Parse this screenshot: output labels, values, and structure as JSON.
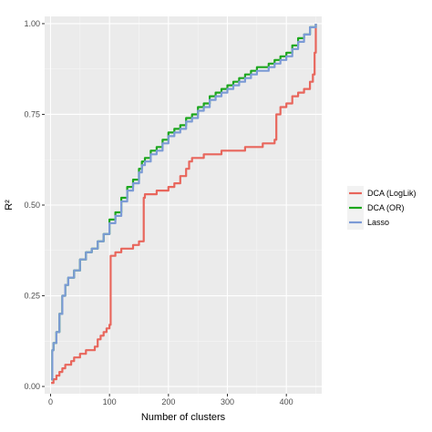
{
  "chart_data": {
    "type": "line",
    "title": "",
    "xlabel": "Number of clusters",
    "ylabel": "R²",
    "xlim": [
      -10,
      460
    ],
    "ylim": [
      -0.02,
      1.02
    ],
    "xticks": [
      0,
      100,
      200,
      300,
      400
    ],
    "yticks": [
      0.0,
      0.25,
      0.5,
      0.75,
      1.0
    ],
    "xtick_labels": [
      "0",
      "100",
      "200",
      "300",
      "400"
    ],
    "ytick_labels": [
      "0.00",
      "0.25",
      "0.50",
      "0.75",
      "1.00"
    ],
    "grid": true,
    "legend_position": "right",
    "series": [
      {
        "name": "DCA (LogLik)",
        "color": "#e8665c",
        "x": [
          1,
          5,
          10,
          15,
          20,
          25,
          30,
          35,
          40,
          45,
          50,
          55,
          60,
          65,
          70,
          75,
          80,
          85,
          90,
          95,
          100,
          102,
          104,
          110,
          120,
          130,
          140,
          150,
          155,
          158,
          160,
          170,
          180,
          190,
          200,
          210,
          220,
          230,
          235,
          240,
          250,
          260,
          270,
          280,
          290,
          300,
          310,
          320,
          330,
          340,
          350,
          360,
          370,
          375,
          380,
          383,
          385,
          390,
          400,
          410,
          420,
          430,
          440,
          445,
          448,
          450
        ],
        "y": [
          0.01,
          0.02,
          0.03,
          0.04,
          0.05,
          0.06,
          0.06,
          0.07,
          0.08,
          0.08,
          0.09,
          0.09,
          0.1,
          0.1,
          0.1,
          0.11,
          0.13,
          0.14,
          0.15,
          0.16,
          0.17,
          0.36,
          0.36,
          0.37,
          0.38,
          0.38,
          0.39,
          0.4,
          0.4,
          0.52,
          0.53,
          0.53,
          0.54,
          0.54,
          0.55,
          0.56,
          0.58,
          0.6,
          0.62,
          0.63,
          0.63,
          0.64,
          0.64,
          0.64,
          0.65,
          0.65,
          0.65,
          0.65,
          0.66,
          0.66,
          0.66,
          0.67,
          0.67,
          0.67,
          0.68,
          0.75,
          0.75,
          0.77,
          0.78,
          0.8,
          0.81,
          0.82,
          0.84,
          0.86,
          0.92,
          1.0
        ]
      },
      {
        "name": "DCA (OR)",
        "color": "#1ca71c",
        "x": [
          1,
          3,
          5,
          10,
          15,
          20,
          25,
          30,
          40,
          50,
          60,
          70,
          80,
          90,
          100,
          110,
          120,
          130,
          140,
          150,
          155,
          160,
          170,
          180,
          190,
          200,
          210,
          220,
          230,
          240,
          250,
          260,
          270,
          280,
          290,
          300,
          310,
          320,
          330,
          340,
          350,
          360,
          370,
          380,
          390,
          400,
          410,
          420,
          430,
          440,
          450
        ],
        "y": [
          0.02,
          0.1,
          0.12,
          0.15,
          0.2,
          0.25,
          0.28,
          0.3,
          0.32,
          0.35,
          0.37,
          0.38,
          0.4,
          0.42,
          0.46,
          0.48,
          0.52,
          0.55,
          0.57,
          0.6,
          0.62,
          0.63,
          0.65,
          0.66,
          0.68,
          0.7,
          0.71,
          0.72,
          0.74,
          0.75,
          0.77,
          0.78,
          0.8,
          0.81,
          0.82,
          0.83,
          0.84,
          0.85,
          0.86,
          0.87,
          0.88,
          0.88,
          0.89,
          0.9,
          0.91,
          0.92,
          0.94,
          0.96,
          0.97,
          0.99,
          1.0
        ]
      },
      {
        "name": "Lasso",
        "color": "#7c9bd6",
        "x": [
          1,
          3,
          5,
          10,
          15,
          20,
          25,
          30,
          40,
          50,
          60,
          70,
          80,
          90,
          100,
          110,
          120,
          130,
          140,
          150,
          155,
          160,
          170,
          180,
          190,
          200,
          210,
          220,
          230,
          240,
          250,
          260,
          270,
          280,
          290,
          300,
          310,
          320,
          330,
          340,
          350,
          360,
          370,
          380,
          390,
          400,
          410,
          420,
          430,
          440,
          450
        ],
        "y": [
          0.02,
          0.1,
          0.12,
          0.15,
          0.2,
          0.25,
          0.28,
          0.3,
          0.32,
          0.35,
          0.37,
          0.38,
          0.4,
          0.42,
          0.45,
          0.47,
          0.51,
          0.54,
          0.56,
          0.59,
          0.61,
          0.62,
          0.64,
          0.65,
          0.67,
          0.69,
          0.7,
          0.71,
          0.73,
          0.74,
          0.76,
          0.77,
          0.79,
          0.8,
          0.81,
          0.82,
          0.83,
          0.84,
          0.85,
          0.86,
          0.87,
          0.87,
          0.88,
          0.89,
          0.9,
          0.91,
          0.93,
          0.95,
          0.97,
          0.99,
          1.0
        ]
      }
    ]
  }
}
